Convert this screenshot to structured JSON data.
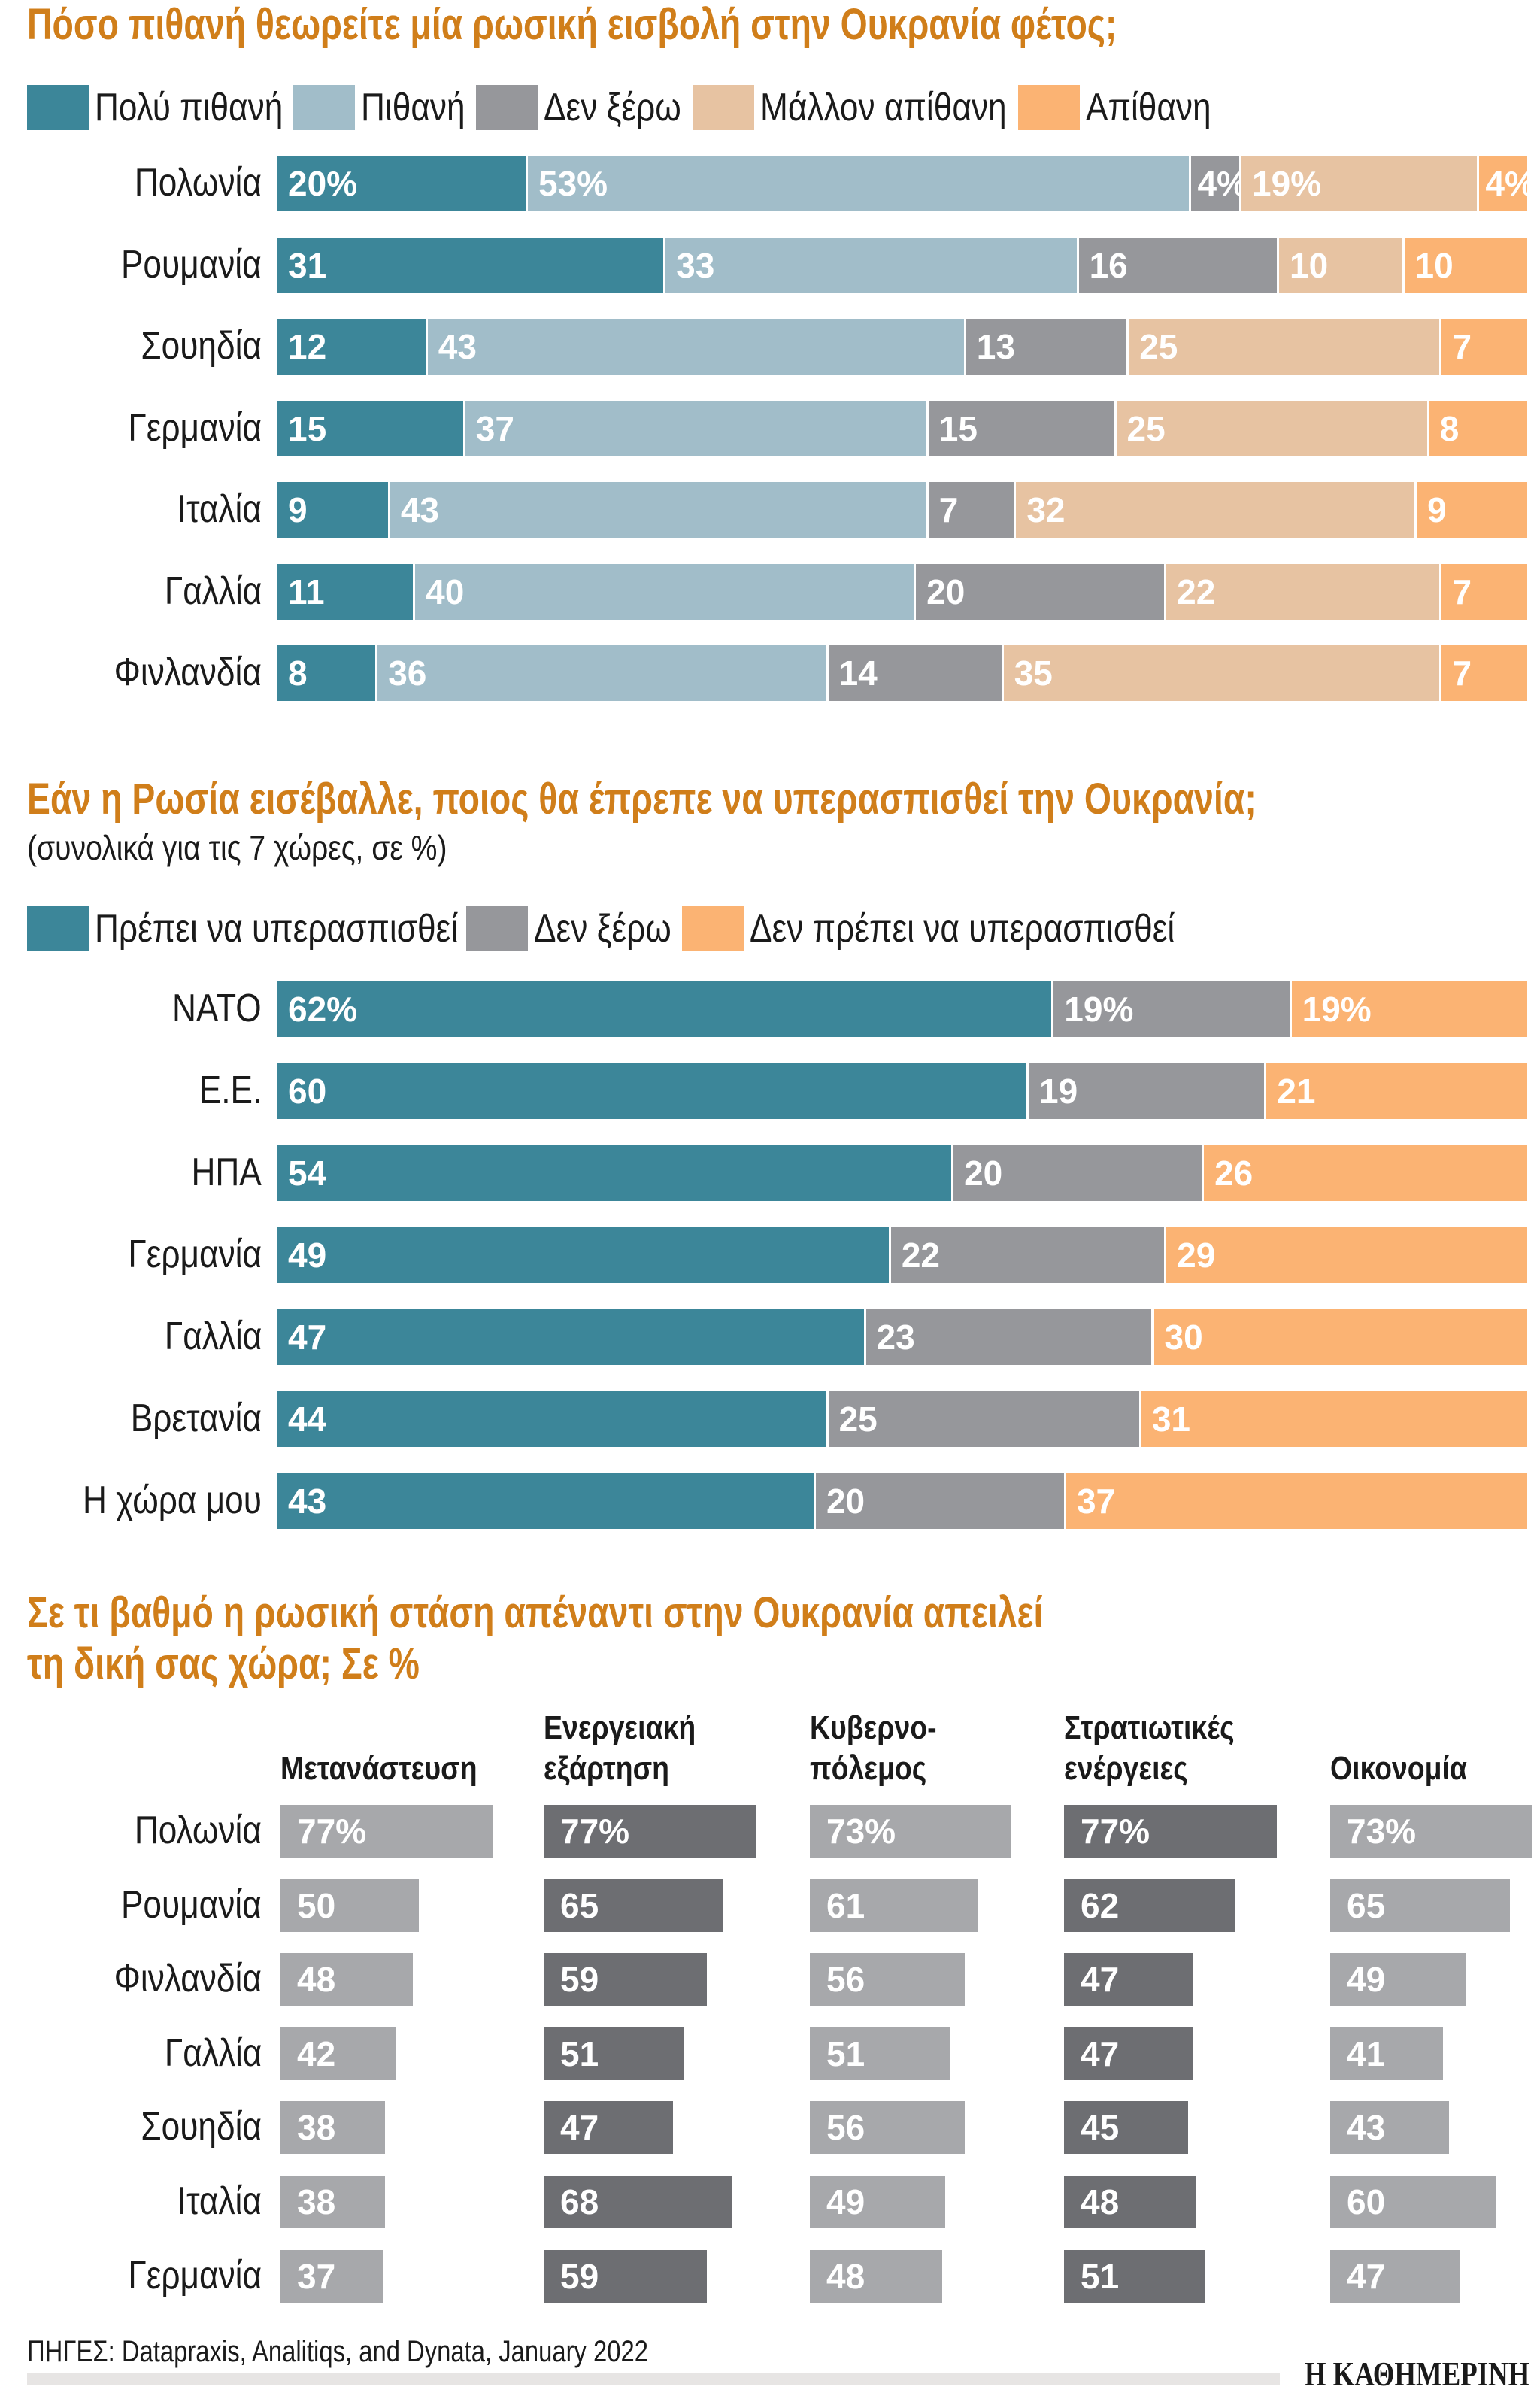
{
  "chart_data": [
    {
      "type": "bar",
      "orientation": "horizontal-stacked",
      "title": "Πόσο πιθανή θεωρείτε μία ρωσική εισβολή στην Ουκρανία φέτος;",
      "categories": [
        "Πολωνία",
        "Ρουμανία",
        "Σουηδία",
        "Γερμανία",
        "Ιταλία",
        "Γαλλία",
        "Φινλανδία"
      ],
      "series": [
        {
          "name": "Πολύ πιθανή",
          "color": "#3C8699",
          "values": [
            20,
            31,
            12,
            15,
            9,
            11,
            8
          ]
        },
        {
          "name": "Πιθανή",
          "color": "#A1BDC9",
          "values": [
            53,
            33,
            43,
            37,
            43,
            40,
            36
          ]
        },
        {
          "name": "Δεν ξέρω",
          "color": "#96979B",
          "values": [
            4,
            16,
            13,
            15,
            7,
            20,
            14
          ]
        },
        {
          "name": "Μάλλον απίθανη",
          "color": "#E7C3A2",
          "values": [
            19,
            10,
            25,
            25,
            32,
            22,
            35
          ]
        },
        {
          "name": "Απίθανη",
          "color": "#FBB373",
          "values": [
            4,
            10,
            7,
            8,
            9,
            7,
            7
          ]
        }
      ],
      "legend": "top-left",
      "grid": false
    },
    {
      "type": "bar",
      "orientation": "horizontal-stacked",
      "title": "Εάν η Ρωσία εισέβαλλε, ποιος θα έπρεπε να υπερασπισθεί την Ουκρανία;",
      "subtitle": "(συνολικά για τις 7 χώρες, σε %)",
      "categories": [
        "ΝΑΤΟ",
        "Ε.Ε.",
        "ΗΠΑ",
        "Γερμανία",
        "Γαλλία",
        "Βρετανία",
        "Η χώρα μου"
      ],
      "series": [
        {
          "name": "Πρέπει να υπερασπισθεί",
          "color": "#3C8699",
          "values": [
            62,
            60,
            54,
            49,
            47,
            44,
            43
          ]
        },
        {
          "name": "Δεν ξέρω",
          "color": "#96979B",
          "values": [
            19,
            19,
            20,
            22,
            23,
            25,
            20
          ]
        },
        {
          "name": "Δεν πρέπει να υπερασπισθεί",
          "color": "#FBB373",
          "values": [
            19,
            21,
            26,
            29,
            30,
            31,
            37
          ]
        }
      ],
      "legend": "top-left",
      "grid": false
    },
    {
      "type": "bar",
      "orientation": "horizontal-small-multiples",
      "title_line1": "Σε τι βαθμό η ρωσική στάση απέναντι στην Ουκρανία απειλεί",
      "title_line2": "τη δική σας χώρα; Σε %",
      "categories": [
        "Πολωνία",
        "Ρουμανία",
        "Φινλανδία",
        "Γαλλία",
        "Σουηδία",
        "Ιταλία",
        "Γερμανία"
      ],
      "series": [
        {
          "name_lines": [
            "",
            "Μετανάστευση"
          ],
          "color": "#A7A8AB",
          "values": [
            77,
            50,
            48,
            42,
            38,
            38,
            37
          ]
        },
        {
          "name_lines": [
            "Ενεργειακή",
            "εξάρτηση"
          ],
          "color": "#6D6E72",
          "values": [
            77,
            65,
            59,
            51,
            47,
            68,
            59
          ]
        },
        {
          "name_lines": [
            "Κυβερνο-",
            "πόλεμος"
          ],
          "color": "#A7A8AB",
          "values": [
            73,
            61,
            56,
            51,
            56,
            49,
            48
          ]
        },
        {
          "name_lines": [
            "Στρατιωτικές",
            "ενέργειες"
          ],
          "color": "#6D6E72",
          "values": [
            77,
            62,
            47,
            47,
            45,
            48,
            51
          ]
        },
        {
          "name_lines": [
            "",
            "Οικονομία"
          ],
          "color": "#A7A8AB",
          "values": [
            73,
            65,
            49,
            41,
            43,
            60,
            47
          ]
        }
      ],
      "grid": false
    }
  ],
  "footer": {
    "source": "ΠΗΓΕΣ: Dataprаxis, Analitiqs, and Dynata, January 2022",
    "logo": "Η ΚΑΘΗΜΕΡΙΝΗ"
  }
}
